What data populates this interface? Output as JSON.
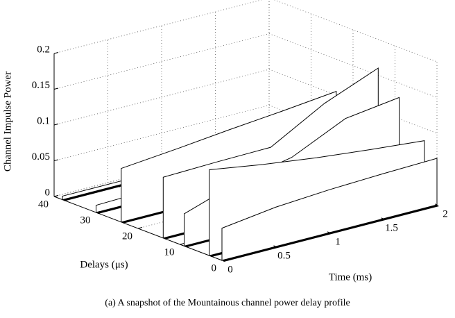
{
  "chart_data": {
    "type": "waterfall3d",
    "caption": "(a) A snapshot of the Mountainous channel power delay profile",
    "zlabel": "Channel Impulse Power",
    "ylabel": "Delays (μs)",
    "xlabel": "Time (ms)",
    "x": [
      0,
      0.5,
      1,
      1.5,
      2
    ],
    "series": [
      {
        "delay": 38,
        "values": [
          0.005,
          0.005,
          0.005,
          0.005,
          0.005
        ]
      },
      {
        "delay": 30,
        "values": [
          0.01,
          0.012,
          0.013,
          0.014,
          0.015
        ]
      },
      {
        "delay": 24,
        "values": [
          0.075,
          0.082,
          0.09,
          0.097,
          0.105
        ]
      },
      {
        "delay": 14,
        "values": [
          0.085,
          0.087,
          0.088,
          0.13,
          0.16
        ]
      },
      {
        "delay": 9,
        "values": [
          0.045,
          0.07,
          0.085,
          0.12,
          0.13
        ]
      },
      {
        "delay": 3,
        "values": [
          0.12,
          0.108,
          0.098,
          0.09,
          0.083
        ]
      },
      {
        "delay": 0,
        "values": [
          0.045,
          0.055,
          0.06,
          0.063,
          0.065
        ]
      }
    ],
    "xlim": [
      0,
      2
    ],
    "xticks": [
      0,
      0.5,
      1,
      1.5,
      2
    ],
    "ylim": [
      0,
      40
    ],
    "yticks": [
      0,
      10,
      20,
      30,
      40
    ],
    "zlim": [
      0,
      0.2
    ],
    "zticks": [
      0,
      0.05,
      0.1,
      0.15,
      0.2
    ],
    "grid": true
  }
}
